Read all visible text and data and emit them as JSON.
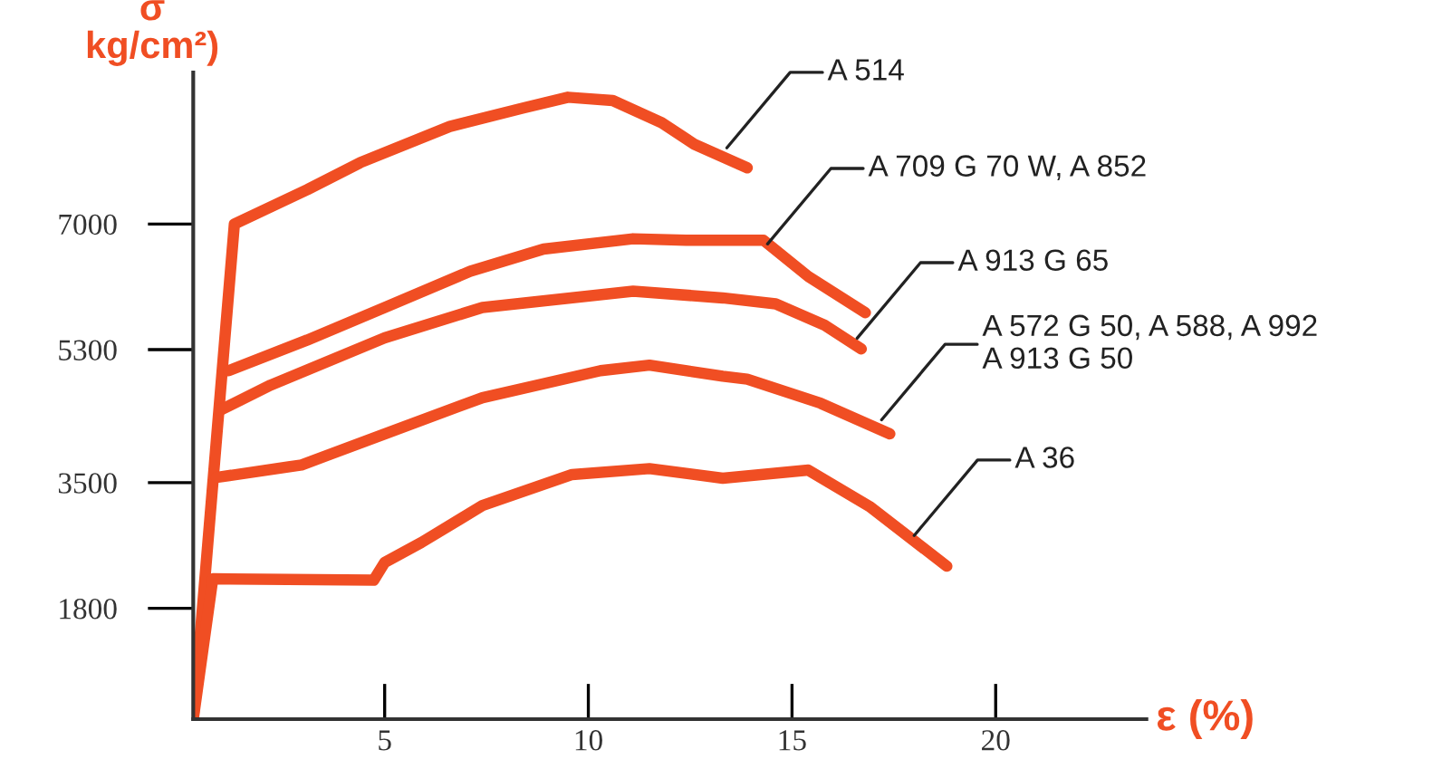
{
  "chart_data": {
    "type": "line",
    "xlabel": "ε (%)",
    "ylabel": "σ\nkg/cm²)",
    "xlim": [
      0.3,
      23.7
    ],
    "ylim": [
      300,
      9050
    ],
    "xticks": [
      5,
      10,
      15,
      20
    ],
    "yticks": [
      1800,
      3500,
      5300,
      7000
    ],
    "grid": false,
    "marker": "none",
    "line_style": "solid",
    "series": [
      {
        "color": "#f04e23",
        "x": [
          0.3,
          1.31,
          3.1,
          4.4,
          6.6,
          8.4,
          9.5,
          10.6,
          11.8,
          12.6,
          13.9
        ],
        "values": [
          300,
          7000,
          7465,
          7830,
          8320,
          8570,
          8715,
          8670,
          8370,
          8080,
          7760
        ]
      },
      {
        "color": "#f04e23",
        "x": [
          1.17,
          3.1,
          5,
          7.1,
          8.9,
          11.1,
          12.4,
          14.3,
          15.4,
          16.8
        ],
        "values": [
          5015,
          5430,
          5870,
          6360,
          6660,
          6800,
          6780,
          6780,
          6290,
          5800
        ]
      },
      {
        "color": "#f04e23",
        "x": [
          0.96,
          2.2,
          5,
          7.4,
          11.1,
          13.3,
          14.6,
          15.8,
          16.7
        ],
        "values": [
          4480,
          4820,
          5460,
          5870,
          6090,
          6000,
          5920,
          5630,
          5310
        ]
      },
      {
        "color": "#f04e23",
        "x": [
          0.87,
          2.96,
          5,
          7.4,
          10.3,
          11.5,
          13.3,
          13.9,
          15.7,
          17.4
        ],
        "values": [
          3570,
          3740,
          4160,
          4650,
          5015,
          5090,
          4940,
          4900,
          4575,
          4160
        ]
      },
      {
        "color": "#f04e23",
        "x": [
          0.3,
          0.78,
          4.73,
          5,
          5.9,
          7.4,
          9.6,
          11.5,
          13.3,
          15.4,
          16.9,
          18.8
        ],
        "values": [
          300,
          2200,
          2180,
          2420,
          2690,
          3190,
          3610,
          3690,
          3560,
          3670,
          3180,
          2370
        ]
      }
    ],
    "annotations": [
      {
        "text": "A 514",
        "x": 13.4,
        "y": 8030
      },
      {
        "text": "A 709 G 70 W, A 852",
        "x": 14.4,
        "y": 6730
      },
      {
        "text": "A 913 G 65",
        "x": 16.6,
        "y": 5455
      },
      {
        "text": "A 572 G 50, A 588, A 992\nA 913 G 50",
        "x": 17.2,
        "y": 4350
      },
      {
        "text": "A 36",
        "x": 18.0,
        "y": 2785
      }
    ]
  }
}
